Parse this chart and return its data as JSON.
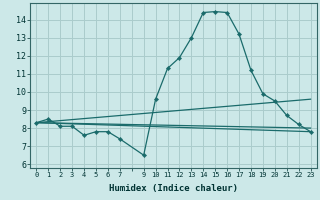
{
  "title": "",
  "xlabel": "Humidex (Indice chaleur)",
  "bg_color": "#cce8e8",
  "grid_color": "#aacccc",
  "line_color": "#1a6b6b",
  "xlim": [
    -0.5,
    23.5
  ],
  "ylim": [
    5.8,
    14.9
  ],
  "yticks": [
    6,
    7,
    8,
    9,
    10,
    11,
    12,
    13,
    14
  ],
  "xtick_labels": [
    "0",
    "1",
    "2",
    "3",
    "4",
    "5",
    "6",
    "7",
    "",
    "9",
    "10",
    "11",
    "12",
    "13",
    "14",
    "15",
    "16",
    "17",
    "18",
    "19",
    "20",
    "21",
    "22",
    "23"
  ],
  "line1_x": [
    0,
    1,
    2,
    3,
    4,
    5,
    6,
    7,
    9,
    10,
    11,
    12,
    13,
    14,
    15,
    16,
    17,
    18,
    19,
    20,
    21,
    22,
    23
  ],
  "line1_y": [
    8.3,
    8.5,
    8.1,
    8.1,
    7.6,
    7.8,
    7.8,
    7.4,
    6.5,
    9.6,
    11.3,
    11.9,
    13.0,
    14.4,
    14.45,
    14.4,
    13.2,
    11.2,
    9.9,
    9.5,
    8.7,
    8.2,
    7.8
  ],
  "line2_x": [
    0,
    23
  ],
  "line2_y": [
    8.3,
    8.0
  ],
  "line3_x": [
    0,
    23
  ],
  "line3_y": [
    8.3,
    9.6
  ],
  "line4_x": [
    0,
    23
  ],
  "line4_y": [
    8.3,
    7.8
  ]
}
